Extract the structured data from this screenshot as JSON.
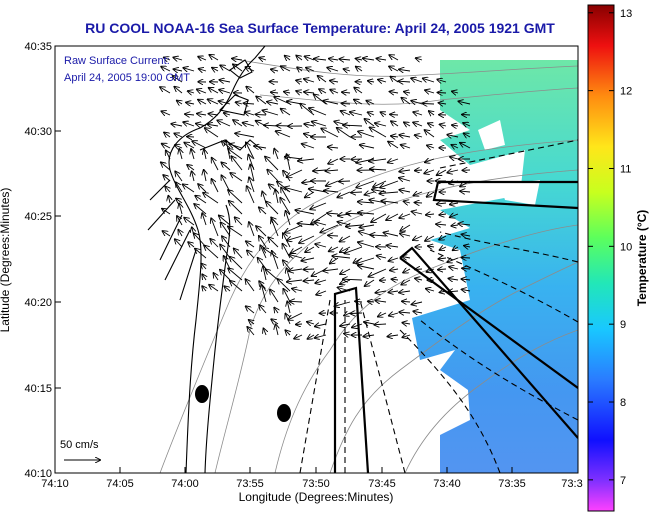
{
  "title": "RU COOL  NOAA-16  Sea Surface Temperature:  April 24, 2005 1921 GMT",
  "annotation": {
    "line1": "Raw Surface Current:",
    "line2": "April 24, 2005 19:00 GMT"
  },
  "scale": {
    "label": "50 cm/s"
  },
  "axes": {
    "xlabel": "Longitude (Degrees:Minutes)",
    "ylabel": "Latitude (Degrees:Minutes)",
    "x_ticks": [
      "74:10",
      "74:05",
      "74:00",
      "73:55",
      "73:50",
      "73:45",
      "73:40",
      "73:35",
      "73:3"
    ],
    "y_ticks": [
      "40:35",
      "40:30",
      "40:25",
      "40:20",
      "40:15",
      "40:10"
    ]
  },
  "colorbar": {
    "label": "Temperature (°C)",
    "ticks": [
      "13",
      "12",
      "11",
      "10",
      "9",
      "8",
      "7"
    ],
    "range": [
      6.6,
      13.1
    ]
  },
  "colors": {
    "title": "#1a1aa8",
    "land_line": "#000000",
    "contour": "#8c8c8c"
  }
}
